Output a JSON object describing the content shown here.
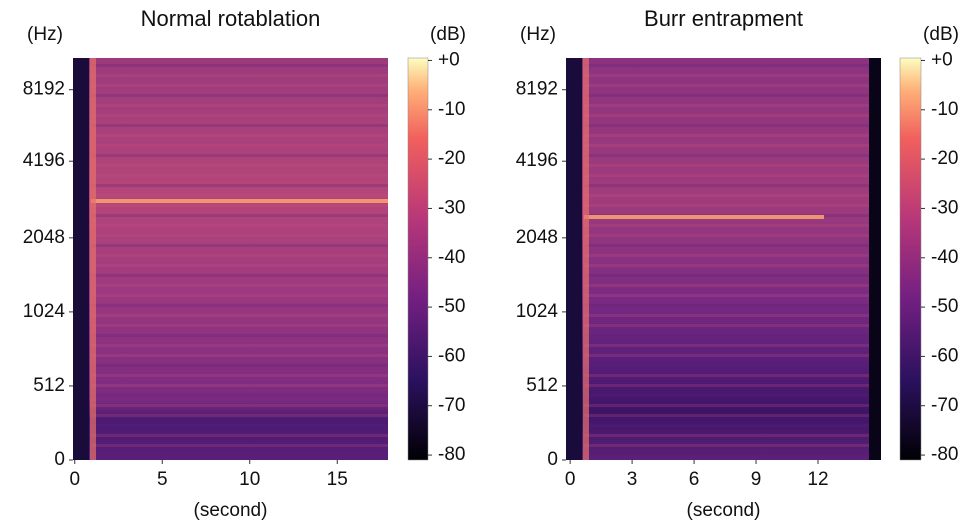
{
  "chart_data": [
    {
      "type": "spectrogram",
      "title": "Normal rotablation",
      "y_unit_label": "(Hz)",
      "x_label": "(second)",
      "xlim": [
        -0.1,
        17.9
      ],
      "xticks": [
        0,
        5,
        10,
        15
      ],
      "yscale": "symlog",
      "ylim": [
        0,
        11025
      ],
      "yticks": [
        0,
        512,
        1024,
        2048,
        4196,
        8192
      ],
      "colorbar": {
        "label": "(dB)",
        "lim": [
          -81,
          0.5
        ],
        "ticks": [
          {
            "value": 0,
            "label": "+0"
          },
          -10,
          -20,
          -30,
          -40,
          -50,
          -60,
          -70,
          -80
        ]
      }
    },
    {
      "type": "spectrogram",
      "title": "Burr entrapment",
      "y_unit_label": "(Hz)",
      "x_label": "(second)",
      "xlim": [
        -0.2,
        15.05
      ],
      "xticks": [
        0,
        3,
        6,
        9,
        12
      ],
      "yscale": "symlog",
      "ylim": [
        0,
        11025
      ],
      "yticks": [
        0,
        512,
        1024,
        2048,
        4196,
        8192
      ],
      "colorbar": {
        "label": "(dB)",
        "lim": [
          -81,
          0.5
        ],
        "ticks": [
          {
            "value": 0,
            "label": "+0"
          },
          -10,
          -20,
          -30,
          -40,
          -50,
          -60,
          -70,
          -80
        ]
      }
    }
  ]
}
